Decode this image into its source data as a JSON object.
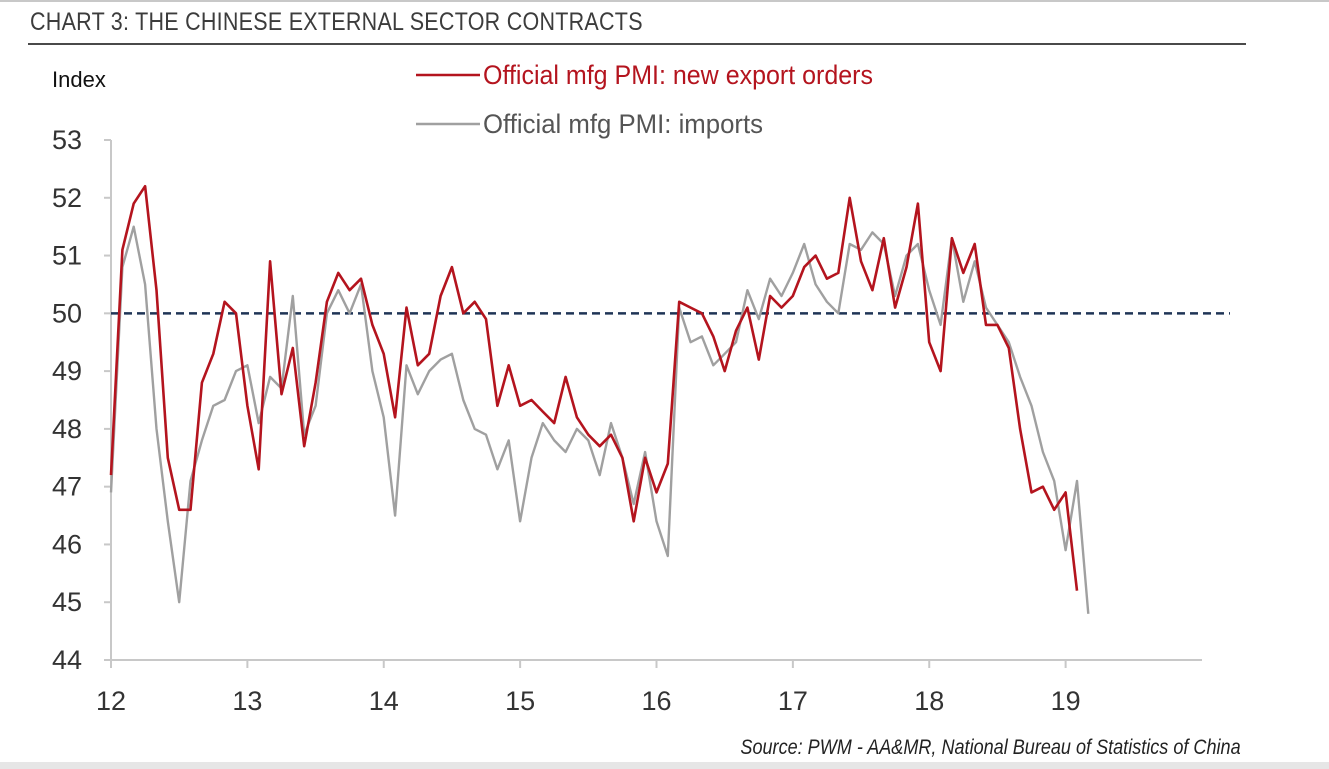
{
  "chart_data": {
    "type": "line",
    "title": "CHART 3: THE CHINESE EXTERNAL SECTOR CONTRACTS",
    "ylabel": "Index",
    "xlabel": "",
    "ylim": [
      44,
      53
    ],
    "yticks": [
      44,
      45,
      46,
      47,
      48,
      49,
      50,
      51,
      52,
      53
    ],
    "xlim": [
      12,
      20
    ],
    "xticks": [
      12,
      13,
      14,
      15,
      16,
      17,
      18,
      19
    ],
    "xtick_labels": [
      "12",
      "13",
      "14",
      "15",
      "16",
      "17",
      "18",
      "19"
    ],
    "reference_line": {
      "value": 50,
      "style": "dashed",
      "color": "#1f3456"
    },
    "legend_position": "top-center",
    "source": "Source: PWM - AA&MR, National Bureau of Statistics of China",
    "series": [
      {
        "name": "Official mfg PMI: new export orders",
        "color": "#b4141e",
        "start": 12,
        "step": 0.08333,
        "values": [
          47.2,
          51.1,
          51.9,
          52.2,
          50.4,
          47.5,
          46.6,
          46.6,
          48.8,
          49.3,
          50.2,
          50.0,
          48.4,
          47.3,
          50.9,
          48.6,
          49.4,
          47.7,
          48.8,
          50.2,
          50.7,
          50.4,
          50.6,
          49.8,
          49.3,
          48.2,
          50.1,
          49.1,
          49.3,
          50.3,
          50.8,
          50.0,
          50.2,
          49.9,
          48.4,
          49.1,
          48.4,
          48.5,
          48.3,
          48.1,
          48.9,
          48.2,
          47.9,
          47.7,
          47.9,
          47.5,
          46.4,
          47.5,
          46.9,
          47.4,
          50.2,
          50.1,
          50.0,
          49.6,
          49.0,
          49.7,
          50.1,
          49.2,
          50.3,
          50.1,
          50.3,
          50.8,
          51.0,
          50.6,
          50.7,
          52.0,
          50.9,
          50.4,
          51.3,
          50.1,
          50.8,
          51.9,
          49.5,
          49.0,
          51.3,
          50.7,
          51.2,
          49.8,
          49.8,
          49.4,
          48.0,
          46.9,
          47.0,
          46.6,
          46.9,
          45.2
        ]
      },
      {
        "name": "Official mfg PMI: imports",
        "color": "#a0a0a0",
        "start": 12,
        "step": 0.08333,
        "values": [
          46.9,
          50.8,
          51.5,
          50.5,
          48.0,
          46.4,
          45.0,
          47.1,
          47.8,
          48.4,
          48.5,
          49.0,
          49.1,
          48.1,
          48.9,
          48.7,
          50.3,
          47.9,
          48.4,
          50.0,
          50.4,
          50.0,
          50.5,
          49.0,
          48.2,
          46.5,
          49.1,
          48.6,
          49.0,
          49.2,
          49.3,
          48.5,
          48.0,
          47.9,
          47.3,
          47.8,
          46.4,
          47.5,
          48.1,
          47.8,
          47.6,
          48.0,
          47.8,
          47.2,
          48.1,
          47.5,
          46.7,
          47.6,
          46.4,
          45.8,
          50.1,
          49.5,
          49.6,
          49.1,
          49.3,
          49.5,
          50.4,
          49.9,
          50.6,
          50.3,
          50.7,
          51.2,
          50.5,
          50.2,
          50.0,
          51.2,
          51.1,
          51.4,
          51.2,
          50.3,
          51.0,
          51.2,
          50.4,
          49.8,
          51.3,
          50.2,
          50.9,
          50.1,
          49.8,
          49.5,
          48.9,
          48.4,
          47.6,
          47.1,
          45.9,
          47.1,
          44.8
        ]
      }
    ]
  }
}
